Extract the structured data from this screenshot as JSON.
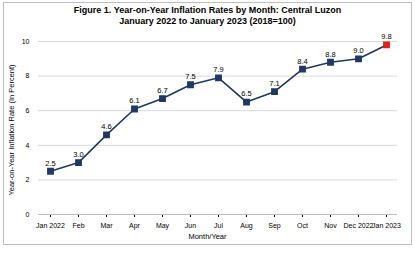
{
  "chart_data": {
    "type": "line",
    "title": "Figure 1.  Year-on-Year Inflation Rates by Month: Central Luzon",
    "subtitle": "January 2022 to January 2023 (2018=100)",
    "x_label": "Month/Year",
    "y_label": "Year-on-Year Inflation Rate (In Percent)",
    "categories": [
      "Jan 2022",
      "Feb",
      "Mar",
      "Apr",
      "May",
      "Jun",
      "Jul",
      "Aug",
      "Sep",
      "Oct",
      "Nov",
      "Dec 2022",
      "Jan 2023"
    ],
    "values": [
      2.5,
      3.0,
      4.6,
      6.1,
      6.7,
      7.5,
      7.9,
      6.5,
      7.1,
      8.4,
      8.8,
      9.0,
      9.8
    ],
    "value_labels": [
      "2.5",
      "3.0",
      "4.6",
      "6.1",
      "6.7",
      "7.5",
      "7.9",
      "6.5",
      "7.1",
      "8.4",
      "8.8",
      "9.0",
      "9.8"
    ],
    "color": "#1f3864",
    "colors": [
      "#1f3864",
      "#1f3864",
      "#1f3864",
      "#1f3864",
      "#1f3864",
      "#1f3864",
      "#1f3864",
      "#1f3864",
      "#1f3864",
      "#1f3864",
      "#1f3864",
      "#1f3864",
      "#e0201b"
    ],
    "marker": "square",
    "ylim": [
      0,
      10
    ],
    "yticks": [
      0,
      2,
      4,
      6,
      8,
      10
    ],
    "grid": true,
    "data_labels": true
  }
}
